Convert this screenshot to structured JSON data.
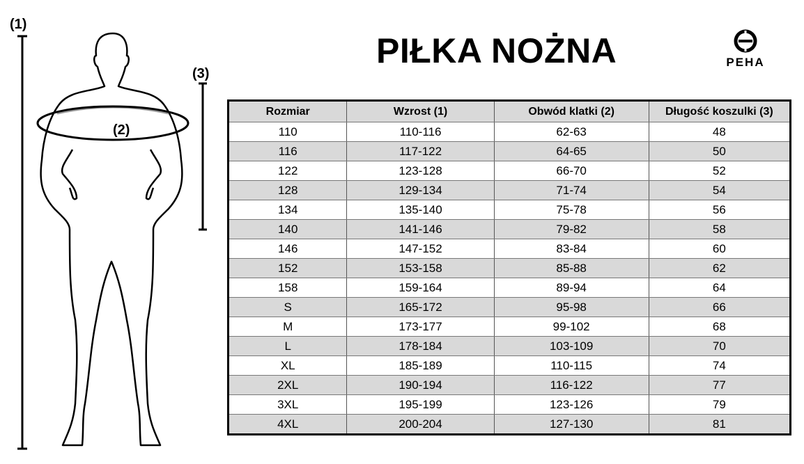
{
  "title": "PIŁKA NOŻNA",
  "brand": "PEHA",
  "figure_labels": {
    "height": "(1)",
    "chest": "(2)",
    "length": "(3)"
  },
  "table": {
    "headers": [
      "Rozmiar",
      "Wzrost (1)",
      "Obwód klatki (2)",
      "Długość koszulki (3)"
    ],
    "rows": [
      [
        "110",
        "110-116",
        "62-63",
        "48"
      ],
      [
        "116",
        "117-122",
        "64-65",
        "50"
      ],
      [
        "122",
        "123-128",
        "66-70",
        "52"
      ],
      [
        "128",
        "129-134",
        "71-74",
        "54"
      ],
      [
        "134",
        "135-140",
        "75-78",
        "56"
      ],
      [
        "140",
        "141-146",
        "79-82",
        "58"
      ],
      [
        "146",
        "147-152",
        "83-84",
        "60"
      ],
      [
        "152",
        "153-158",
        "85-88",
        "62"
      ],
      [
        "158",
        "159-164",
        "89-94",
        "64"
      ],
      [
        "S",
        "165-172",
        "95-98",
        "66"
      ],
      [
        "M",
        "173-177",
        "99-102",
        "68"
      ],
      [
        "L",
        "178-184",
        "103-109",
        "70"
      ],
      [
        "XL",
        "185-189",
        "110-115",
        "74"
      ],
      [
        "2XL",
        "190-194",
        "116-122",
        "77"
      ],
      [
        "3XL",
        "195-199",
        "123-126",
        "79"
      ],
      [
        "4XL",
        "200-204",
        "127-130",
        "81"
      ]
    ]
  }
}
